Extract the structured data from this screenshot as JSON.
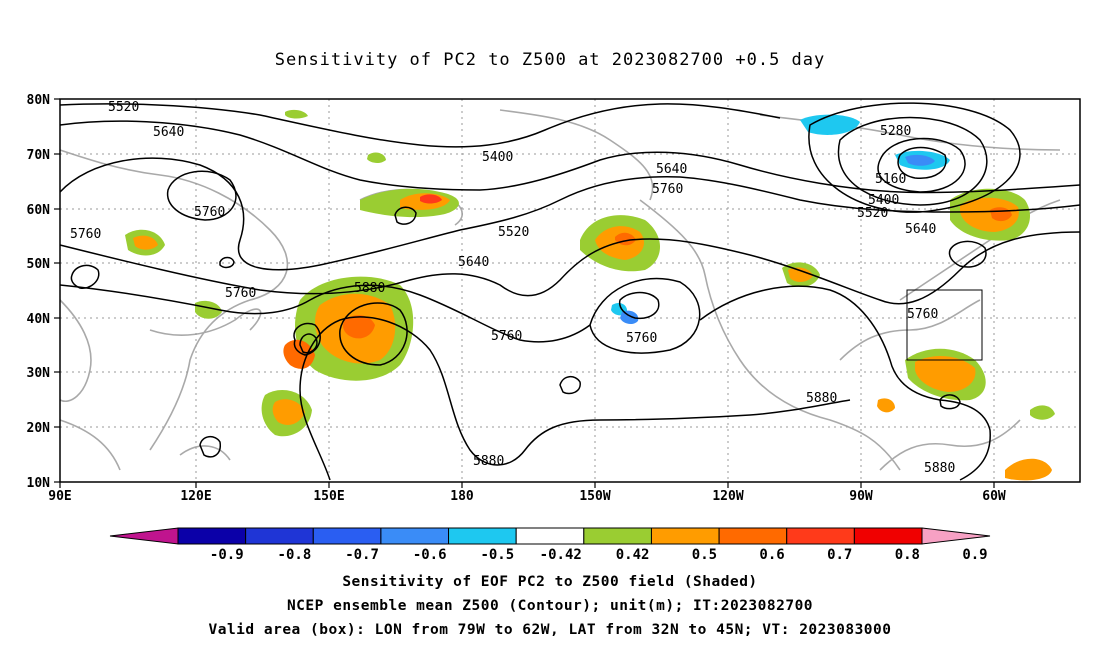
{
  "title": "Sensitivity of PC2 to Z500 at 2023082700 +0.5 day",
  "axes": {
    "lon_labels": [
      "90E",
      "120E",
      "150E",
      "180",
      "150W",
      "120W",
      "90W",
      "60W"
    ],
    "lat_labels": [
      "80N",
      "70N",
      "60N",
      "50N",
      "40N",
      "30N",
      "20N",
      "10N"
    ]
  },
  "contour_labels": [
    "5520",
    "5640",
    "5400",
    "5640",
    "5760",
    "5280",
    "5160",
    "5400",
    "5520",
    "5640",
    "5760",
    "5520",
    "5760",
    "5640",
    "5760",
    "5880",
    "5760",
    "5760",
    "5760",
    "5880",
    "5880",
    "5880"
  ],
  "colorbar": {
    "ticks": [
      "-0.9",
      "-0.8",
      "-0.7",
      "-0.6",
      "-0.5",
      "-0.42",
      "0.42",
      "0.5",
      "0.6",
      "0.7",
      "0.8",
      "0.9"
    ],
    "colors": [
      "#0b00a8",
      "#1f35d6",
      "#2a5ef2",
      "#3a8cf7",
      "#1ec8f0",
      "#ffffff",
      "#9acd32",
      "#ff9c00",
      "#ff6a00",
      "#ff3a1a",
      "#f00000"
    ],
    "low_color": "#c0148e",
    "high_color": "#f7a1c4"
  },
  "caption": {
    "line1": "Sensitivity of EOF PC2 to Z500 field (Shaded)",
    "line2": "NCEP ensemble mean Z500 (Contour); unit(m); IT:2023082700",
    "line3": "Valid area (box): LON from 79W to 62W, LAT from 32N to 45N; VT: 2023083000"
  }
}
